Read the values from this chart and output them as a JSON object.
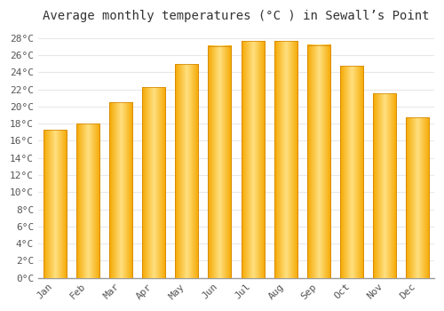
{
  "months": [
    "Jan",
    "Feb",
    "Mar",
    "Apr",
    "May",
    "Jun",
    "Jul",
    "Aug",
    "Sep",
    "Oct",
    "Nov",
    "Dec"
  ],
  "values": [
    17.3,
    18.0,
    20.5,
    22.3,
    25.0,
    27.1,
    27.7,
    27.7,
    27.2,
    24.8,
    21.5,
    18.7
  ],
  "bar_color_center": "#FFE080",
  "bar_color_edge": "#F5A800",
  "title": "Average monthly temperatures (°C ) in Sewall’s Point",
  "ylim": [
    0,
    29
  ],
  "ytick_step": 2,
  "background_color": "#FFFFFF",
  "grid_color": "#E8E8E8",
  "title_fontsize": 10,
  "tick_fontsize": 8,
  "font_family": "monospace"
}
